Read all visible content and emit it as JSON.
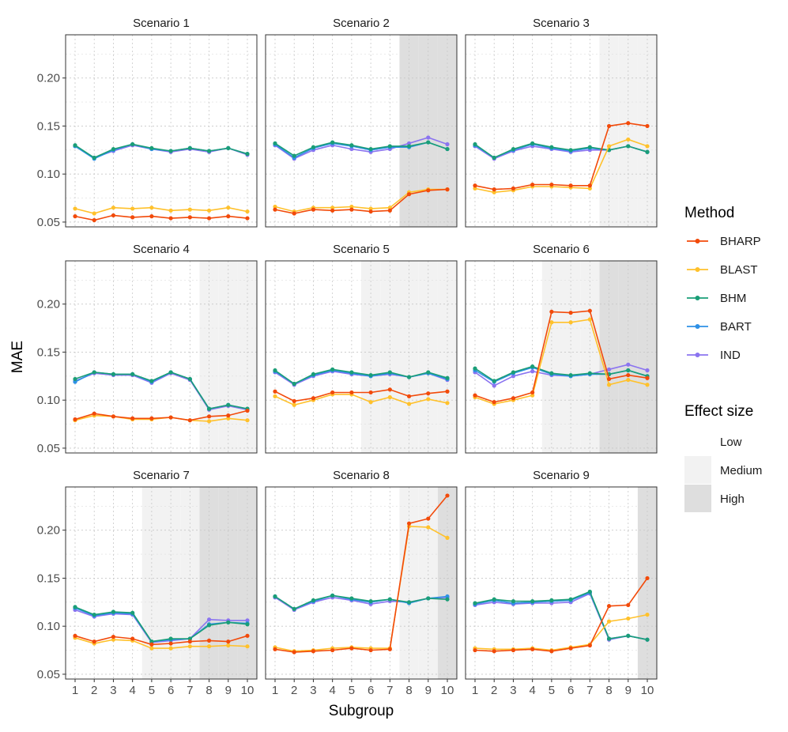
{
  "chart_data": {
    "type": "line",
    "layout": "3x3 facet grid",
    "xlabel": "Subgroup",
    "ylabel": "MAE",
    "x": [
      1,
      2,
      3,
      4,
      5,
      6,
      7,
      8,
      9,
      10
    ],
    "x_tick_labels": [
      "1",
      "2",
      "3",
      "4",
      "5",
      "6",
      "7",
      "8",
      "9",
      "10"
    ],
    "ylim": [
      0.045,
      0.245
    ],
    "y_ticks": [
      0.05,
      0.1,
      0.15,
      0.2
    ],
    "y_tick_labels": [
      "0.05",
      "0.10",
      "0.15",
      "0.20"
    ],
    "grid": true,
    "legend": {
      "placement": "right",
      "method_title": "Method",
      "effect_title": "Effect size",
      "methods": [
        {
          "name": "BHARP",
          "color": "#f24a0a"
        },
        {
          "name": "BLAST",
          "color": "#ffc12b"
        },
        {
          "name": "BHM",
          "color": "#1a9e77"
        },
        {
          "name": "BART",
          "color": "#2e91e6"
        },
        {
          "name": "IND",
          "color": "#8b74f0"
        }
      ],
      "effects": [
        {
          "name": "Low",
          "color": "#ffffff"
        },
        {
          "name": "Medium",
          "color": "#f2f2f2"
        },
        {
          "name": "High",
          "color": "#dedede"
        }
      ]
    },
    "panels": [
      {
        "title": "Scenario 1",
        "effect_by_subgroup": [
          "Low",
          "Low",
          "Low",
          "Low",
          "Low",
          "Low",
          "Low",
          "Low",
          "Low",
          "Low"
        ],
        "series": [
          {
            "name": "IND",
            "values": [
              0.129,
              0.117,
              0.124,
              0.13,
              0.126,
              0.123,
              0.126,
              0.123,
              0.127,
              0.12
            ]
          },
          {
            "name": "BART",
            "values": [
              0.129,
              0.116,
              0.125,
              0.131,
              0.126,
              0.124,
              0.127,
              0.124,
              0.127,
              0.121
            ]
          },
          {
            "name": "BHM",
            "values": [
              0.13,
              0.117,
              0.126,
              0.131,
              0.127,
              0.124,
              0.127,
              0.124,
              0.127,
              0.121
            ]
          },
          {
            "name": "BLAST",
            "values": [
              0.064,
              0.059,
              0.065,
              0.064,
              0.065,
              0.062,
              0.063,
              0.062,
              0.065,
              0.061
            ]
          },
          {
            "name": "BHARP",
            "values": [
              0.056,
              0.052,
              0.057,
              0.055,
              0.056,
              0.054,
              0.055,
              0.054,
              0.056,
              0.054
            ]
          }
        ]
      },
      {
        "title": "Scenario 2",
        "effect_by_subgroup": [
          "Low",
          "Low",
          "Low",
          "Low",
          "Low",
          "Low",
          "Low",
          "High",
          "High",
          "High"
        ],
        "series": [
          {
            "name": "IND",
            "values": [
              0.13,
              0.116,
              0.125,
              0.13,
              0.126,
              0.123,
              0.126,
              0.132,
              0.138,
              0.131
            ]
          },
          {
            "name": "BART",
            "values": [
              0.131,
              0.117,
              0.127,
              0.132,
              0.129,
              0.125,
              0.128,
              0.128,
              0.133,
              0.126
            ]
          },
          {
            "name": "BHM",
            "values": [
              0.132,
              0.119,
              0.128,
              0.133,
              0.13,
              0.126,
              0.129,
              0.129,
              0.133,
              0.126
            ]
          },
          {
            "name": "BLAST",
            "values": [
              0.066,
              0.061,
              0.065,
              0.065,
              0.066,
              0.064,
              0.065,
              0.081,
              0.084,
              0.084
            ]
          },
          {
            "name": "BHARP",
            "values": [
              0.063,
              0.059,
              0.063,
              0.062,
              0.063,
              0.061,
              0.062,
              0.079,
              0.083,
              0.084
            ]
          }
        ]
      },
      {
        "title": "Scenario 3",
        "effect_by_subgroup": [
          "Low",
          "Low",
          "Low",
          "Low",
          "Low",
          "Low",
          "Low",
          "Medium",
          "Medium",
          "Medium"
        ],
        "series": [
          {
            "name": "IND",
            "values": [
              0.129,
              0.116,
              0.124,
              0.129,
              0.126,
              0.123,
              0.125,
              0.125,
              0.129,
              0.123
            ]
          },
          {
            "name": "BART",
            "values": [
              0.13,
              0.117,
              0.125,
              0.131,
              0.127,
              0.124,
              0.127,
              0.125,
              0.129,
              0.123
            ]
          },
          {
            "name": "BHM",
            "values": [
              0.131,
              0.117,
              0.126,
              0.132,
              0.128,
              0.125,
              0.128,
              0.125,
              0.129,
              0.123
            ]
          },
          {
            "name": "BLAST",
            "values": [
              0.085,
              0.081,
              0.083,
              0.087,
              0.087,
              0.086,
              0.085,
              0.129,
              0.136,
              0.129
            ]
          },
          {
            "name": "BHARP",
            "values": [
              0.088,
              0.084,
              0.085,
              0.089,
              0.089,
              0.088,
              0.088,
              0.15,
              0.153,
              0.15
            ]
          }
        ]
      },
      {
        "title": "Scenario 4",
        "effect_by_subgroup": [
          "Low",
          "Low",
          "Low",
          "Low",
          "Low",
          "Low",
          "Low",
          "Medium",
          "Medium",
          "Medium"
        ],
        "series": [
          {
            "name": "IND",
            "values": [
              0.12,
              0.128,
              0.126,
              0.126,
              0.118,
              0.128,
              0.121,
              0.09,
              0.094,
              0.09
            ]
          },
          {
            "name": "BART",
            "values": [
              0.119,
              0.129,
              0.127,
              0.127,
              0.119,
              0.129,
              0.122,
              0.091,
              0.095,
              0.091
            ]
          },
          {
            "name": "BHM",
            "values": [
              0.122,
              0.129,
              0.127,
              0.127,
              0.12,
              0.129,
              0.122,
              0.091,
              0.095,
              0.091
            ]
          },
          {
            "name": "BLAST",
            "values": [
              0.079,
              0.084,
              0.083,
              0.08,
              0.08,
              0.082,
              0.079,
              0.078,
              0.081,
              0.079
            ]
          },
          {
            "name": "BHARP",
            "values": [
              0.08,
              0.086,
              0.083,
              0.081,
              0.081,
              0.082,
              0.079,
              0.083,
              0.084,
              0.089
            ]
          }
        ]
      },
      {
        "title": "Scenario 5",
        "effect_by_subgroup": [
          "Low",
          "Low",
          "Low",
          "Low",
          "Low",
          "Medium",
          "Medium",
          "Medium",
          "Medium",
          "Medium"
        ],
        "series": [
          {
            "name": "IND",
            "values": [
              0.129,
              0.116,
              0.125,
              0.13,
              0.127,
              0.125,
              0.127,
              0.124,
              0.128,
              0.121
            ]
          },
          {
            "name": "BART",
            "values": [
              0.13,
              0.117,
              0.126,
              0.131,
              0.128,
              0.125,
              0.128,
              0.124,
              0.128,
              0.122
            ]
          },
          {
            "name": "BHM",
            "values": [
              0.131,
              0.117,
              0.127,
              0.132,
              0.129,
              0.126,
              0.129,
              0.124,
              0.129,
              0.123
            ]
          },
          {
            "name": "BLAST",
            "values": [
              0.104,
              0.095,
              0.1,
              0.106,
              0.106,
              0.098,
              0.103,
              0.096,
              0.101,
              0.097
            ]
          },
          {
            "name": "BHARP",
            "values": [
              0.109,
              0.099,
              0.102,
              0.108,
              0.108,
              0.108,
              0.111,
              0.104,
              0.107,
              0.109
            ]
          }
        ]
      },
      {
        "title": "Scenario 6",
        "effect_by_subgroup": [
          "Low",
          "Low",
          "Low",
          "Low",
          "Medium",
          "Medium",
          "Medium",
          "High",
          "High",
          "High"
        ],
        "series": [
          {
            "name": "IND",
            "values": [
              0.129,
              0.115,
              0.125,
              0.13,
              0.126,
              0.125,
              0.127,
              0.132,
              0.137,
              0.131
            ]
          },
          {
            "name": "BART",
            "values": [
              0.131,
              0.119,
              0.128,
              0.134,
              0.127,
              0.125,
              0.127,
              0.127,
              0.131,
              0.125
            ]
          },
          {
            "name": "BHM",
            "values": [
              0.133,
              0.12,
              0.129,
              0.135,
              0.128,
              0.126,
              0.128,
              0.127,
              0.131,
              0.125
            ]
          },
          {
            "name": "BLAST",
            "values": [
              0.103,
              0.096,
              0.1,
              0.105,
              0.181,
              0.181,
              0.184,
              0.116,
              0.121,
              0.116
            ]
          },
          {
            "name": "BHARP",
            "values": [
              0.105,
              0.098,
              0.102,
              0.108,
              0.192,
              0.191,
              0.193,
              0.122,
              0.126,
              0.123
            ]
          }
        ]
      },
      {
        "title": "Scenario 7",
        "effect_by_subgroup": [
          "Low",
          "Low",
          "Low",
          "Low",
          "Medium",
          "Medium",
          "Medium",
          "High",
          "High",
          "High"
        ],
        "series": [
          {
            "name": "IND",
            "values": [
              0.117,
              0.11,
              0.113,
              0.112,
              0.083,
              0.085,
              0.087,
              0.107,
              0.106,
              0.106
            ]
          },
          {
            "name": "BART",
            "values": [
              0.119,
              0.111,
              0.114,
              0.113,
              0.084,
              0.086,
              0.087,
              0.102,
              0.104,
              0.103
            ]
          },
          {
            "name": "BHM",
            "values": [
              0.12,
              0.112,
              0.115,
              0.114,
              0.084,
              0.087,
              0.087,
              0.101,
              0.104,
              0.102
            ]
          },
          {
            "name": "BLAST",
            "values": [
              0.088,
              0.082,
              0.086,
              0.085,
              0.077,
              0.077,
              0.079,
              0.079,
              0.08,
              0.079
            ]
          },
          {
            "name": "BHARP",
            "values": [
              0.09,
              0.084,
              0.089,
              0.087,
              0.081,
              0.082,
              0.084,
              0.085,
              0.084,
              0.09
            ]
          }
        ]
      },
      {
        "title": "Scenario 8",
        "effect_by_subgroup": [
          "Low",
          "Low",
          "Low",
          "Low",
          "Low",
          "Low",
          "Low",
          "Medium",
          "Medium",
          "High"
        ],
        "series": [
          {
            "name": "IND",
            "values": [
              0.13,
              0.117,
              0.125,
              0.13,
              0.127,
              0.123,
              0.126,
              0.125,
              0.129,
              0.13
            ]
          },
          {
            "name": "BART",
            "values": [
              0.131,
              0.118,
              0.126,
              0.132,
              0.128,
              0.125,
              0.128,
              0.124,
              0.129,
              0.131
            ]
          },
          {
            "name": "BHM",
            "values": [
              0.131,
              0.118,
              0.127,
              0.132,
              0.129,
              0.126,
              0.128,
              0.125,
              0.129,
              0.128
            ]
          },
          {
            "name": "BLAST",
            "values": [
              0.078,
              0.074,
              0.075,
              0.077,
              0.078,
              0.077,
              0.077,
              0.204,
              0.203,
              0.192
            ]
          },
          {
            "name": "BHARP",
            "values": [
              0.076,
              0.073,
              0.074,
              0.075,
              0.077,
              0.075,
              0.076,
              0.207,
              0.212,
              0.236
            ]
          }
        ]
      },
      {
        "title": "Scenario 9",
        "effect_by_subgroup": [
          "Low",
          "Low",
          "Low",
          "Low",
          "Low",
          "Low",
          "Low",
          "Low",
          "Low",
          "High"
        ],
        "series": [
          {
            "name": "IND",
            "values": [
              0.122,
              0.125,
              0.123,
              0.124,
              0.124,
              0.125,
              0.134,
              0.086,
              0.09,
              0.086
            ]
          },
          {
            "name": "BART",
            "values": [
              0.123,
              0.127,
              0.124,
              0.125,
              0.126,
              0.127,
              0.135,
              0.087,
              0.09,
              0.086
            ]
          },
          {
            "name": "BHM",
            "values": [
              0.124,
              0.128,
              0.126,
              0.126,
              0.127,
              0.128,
              0.136,
              0.087,
              0.09,
              0.086
            ]
          },
          {
            "name": "BLAST",
            "values": [
              0.077,
              0.076,
              0.076,
              0.077,
              0.075,
              0.078,
              0.081,
              0.105,
              0.108,
              0.112
            ]
          },
          {
            "name": "BHARP",
            "values": [
              0.075,
              0.074,
              0.075,
              0.076,
              0.074,
              0.077,
              0.08,
              0.121,
              0.122,
              0.15
            ]
          }
        ]
      }
    ]
  }
}
